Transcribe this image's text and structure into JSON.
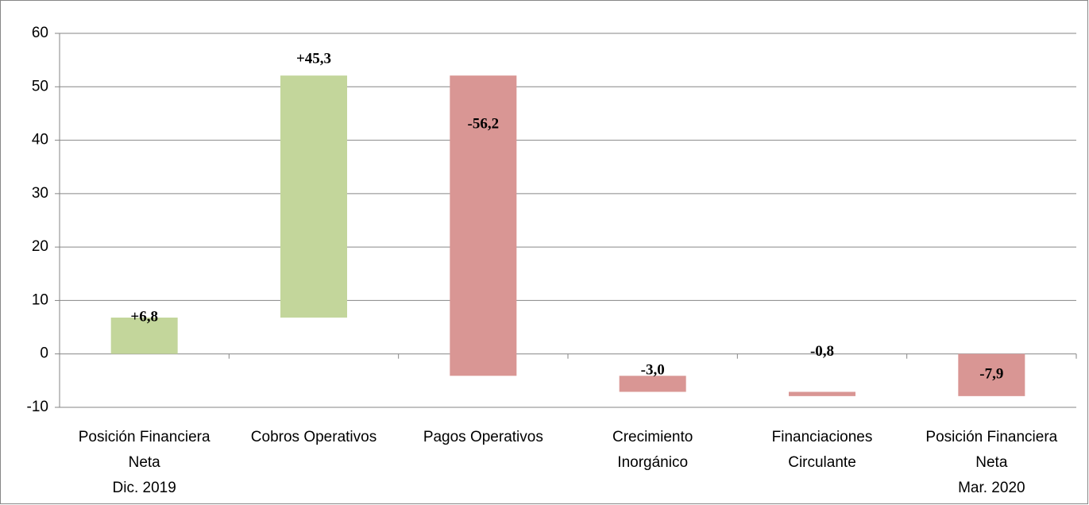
{
  "chart_data": {
    "type": "waterfall",
    "categories": [
      [
        "Posición Financiera",
        "Neta",
        "Dic. 2019"
      ],
      [
        "Cobros Operativos"
      ],
      [
        "Pagos Operativos"
      ],
      [
        "Crecimiento",
        "Inorgánico"
      ],
      [
        "Financiaciones",
        "Circulante"
      ],
      [
        "Posición Financiera",
        "Neta",
        "Mar. 2020"
      ]
    ],
    "values": [
      6.8,
      45.3,
      -56.2,
      -3.0,
      -0.8,
      -7.9
    ],
    "value_labels": [
      "+6,8",
      "+45,3",
      "-56,2",
      "-3,0",
      "-0,8",
      "-7,9"
    ],
    "last_is_total": true,
    "increase_color": "#c3d69b",
    "decrease_color": "#d99694",
    "ylim": [
      -10,
      60
    ],
    "yticks": [
      -10,
      0,
      10,
      20,
      30,
      40,
      50,
      60
    ],
    "grid": true
  }
}
